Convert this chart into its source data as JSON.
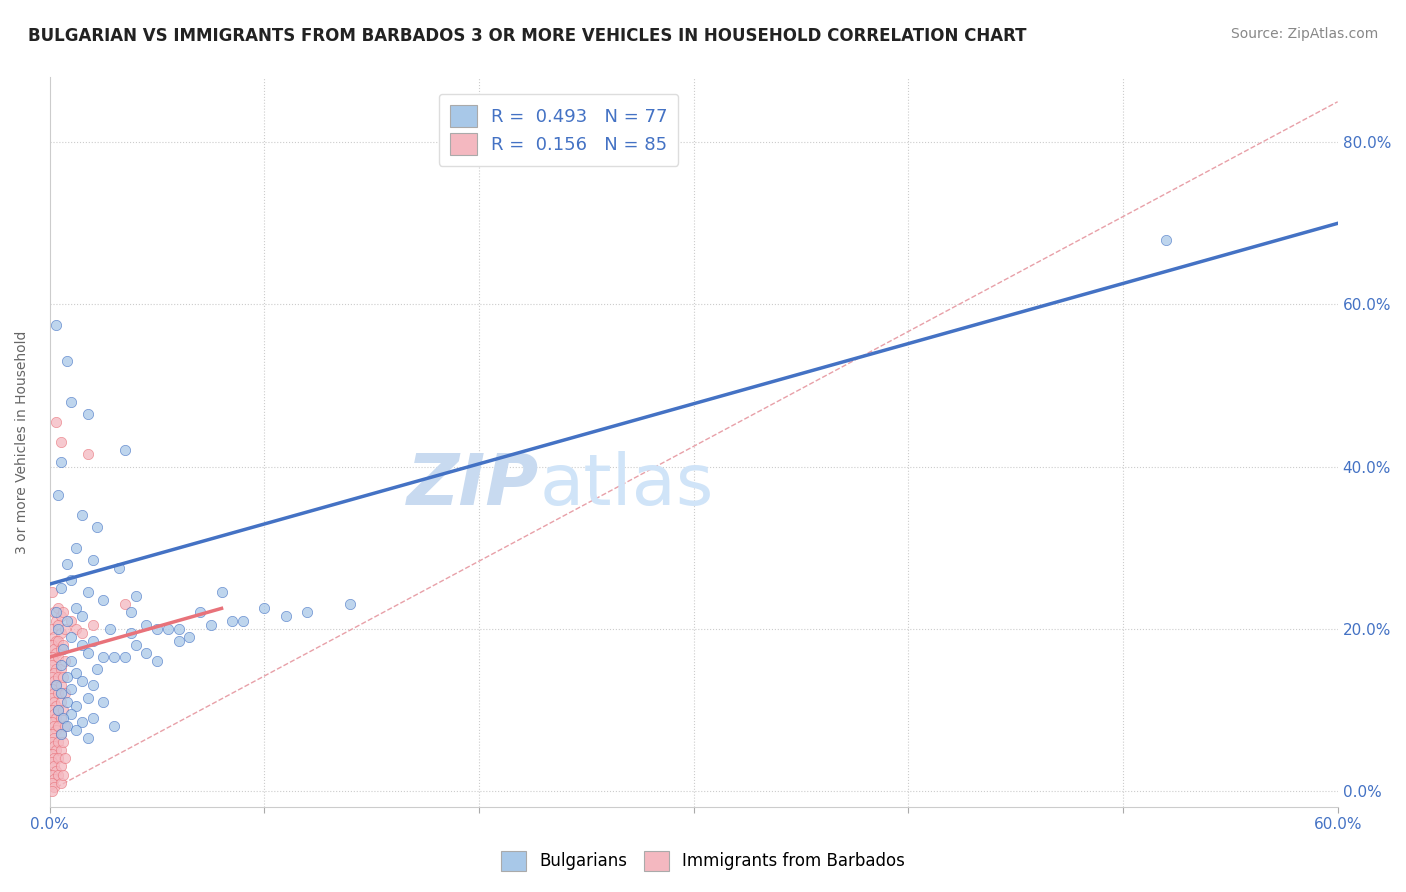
{
  "title": "BULGARIAN VS IMMIGRANTS FROM BARBADOS 3 OR MORE VEHICLES IN HOUSEHOLD CORRELATION CHART",
  "source": "Source: ZipAtlas.com",
  "ylabel": "3 or more Vehicles in Household",
  "ytick_values": [
    0.0,
    20.0,
    40.0,
    60.0,
    80.0
  ],
  "xlim": [
    0.0,
    60.0
  ],
  "ylim": [
    -2.0,
    88.0
  ],
  "watermark_zip": "ZIP",
  "watermark_atlas": "atlas",
  "blue_scatter": [
    [
      0.3,
      57.5
    ],
    [
      0.8,
      53.0
    ],
    [
      1.0,
      48.0
    ],
    [
      1.8,
      46.5
    ],
    [
      0.5,
      40.5
    ],
    [
      0.4,
      36.5
    ],
    [
      1.5,
      34.0
    ],
    [
      2.2,
      32.5
    ],
    [
      3.5,
      42.0
    ],
    [
      1.2,
      30.0
    ],
    [
      0.8,
      28.0
    ],
    [
      2.0,
      28.5
    ],
    [
      3.2,
      27.5
    ],
    [
      1.0,
      26.0
    ],
    [
      0.5,
      25.0
    ],
    [
      1.8,
      24.5
    ],
    [
      2.5,
      23.5
    ],
    [
      1.2,
      22.5
    ],
    [
      0.3,
      22.0
    ],
    [
      1.5,
      21.5
    ],
    [
      0.8,
      21.0
    ],
    [
      2.8,
      20.0
    ],
    [
      0.4,
      20.0
    ],
    [
      1.0,
      19.0
    ],
    [
      3.8,
      22.0
    ],
    [
      2.0,
      18.5
    ],
    [
      1.5,
      18.0
    ],
    [
      0.6,
      17.5
    ],
    [
      1.8,
      17.0
    ],
    [
      2.5,
      16.5
    ],
    [
      1.0,
      16.0
    ],
    [
      0.5,
      15.5
    ],
    [
      3.0,
      16.5
    ],
    [
      2.2,
      15.0
    ],
    [
      1.2,
      14.5
    ],
    [
      0.8,
      14.0
    ],
    [
      1.5,
      13.5
    ],
    [
      0.3,
      13.0
    ],
    [
      2.0,
      13.0
    ],
    [
      1.0,
      12.5
    ],
    [
      0.5,
      12.0
    ],
    [
      1.8,
      11.5
    ],
    [
      0.8,
      11.0
    ],
    [
      2.5,
      11.0
    ],
    [
      1.2,
      10.5
    ],
    [
      0.4,
      10.0
    ],
    [
      1.0,
      9.5
    ],
    [
      0.6,
      9.0
    ],
    [
      2.0,
      9.0
    ],
    [
      1.5,
      8.5
    ],
    [
      0.8,
      8.0
    ],
    [
      1.2,
      7.5
    ],
    [
      3.0,
      8.0
    ],
    [
      0.5,
      7.0
    ],
    [
      1.8,
      6.5
    ],
    [
      4.0,
      24.0
    ],
    [
      5.5,
      20.0
    ],
    [
      6.0,
      18.5
    ],
    [
      8.0,
      24.5
    ],
    [
      10.0,
      22.5
    ],
    [
      7.0,
      22.0
    ],
    [
      4.5,
      17.0
    ],
    [
      12.0,
      22.0
    ],
    [
      5.0,
      20.0
    ],
    [
      3.5,
      16.5
    ],
    [
      6.5,
      19.0
    ],
    [
      9.0,
      21.0
    ],
    [
      11.0,
      21.5
    ],
    [
      14.0,
      23.0
    ],
    [
      7.5,
      20.5
    ],
    [
      4.0,
      18.0
    ],
    [
      52.0,
      68.0
    ],
    [
      5.0,
      16.0
    ],
    [
      6.0,
      20.0
    ],
    [
      3.8,
      19.5
    ],
    [
      8.5,
      21.0
    ],
    [
      4.5,
      20.5
    ]
  ],
  "pink_scatter": [
    [
      0.1,
      24.5
    ],
    [
      0.2,
      22.0
    ],
    [
      0.3,
      21.0
    ],
    [
      0.1,
      20.0
    ],
    [
      0.2,
      19.0
    ],
    [
      0.3,
      18.5
    ],
    [
      0.1,
      18.0
    ],
    [
      0.2,
      17.5
    ],
    [
      0.3,
      17.0
    ],
    [
      0.1,
      16.5
    ],
    [
      0.2,
      16.0
    ],
    [
      0.1,
      15.5
    ],
    [
      0.3,
      15.0
    ],
    [
      0.2,
      14.5
    ],
    [
      0.1,
      14.0
    ],
    [
      0.2,
      13.5
    ],
    [
      0.3,
      13.0
    ],
    [
      0.1,
      12.5
    ],
    [
      0.2,
      12.0
    ],
    [
      0.1,
      11.5
    ],
    [
      0.2,
      11.0
    ],
    [
      0.3,
      10.5
    ],
    [
      0.1,
      10.0
    ],
    [
      0.2,
      9.5
    ],
    [
      0.3,
      9.0
    ],
    [
      0.1,
      8.5
    ],
    [
      0.2,
      8.0
    ],
    [
      0.3,
      7.5
    ],
    [
      0.1,
      7.0
    ],
    [
      0.2,
      6.5
    ],
    [
      0.1,
      6.0
    ],
    [
      0.2,
      5.5
    ],
    [
      0.3,
      5.0
    ],
    [
      0.1,
      4.5
    ],
    [
      0.2,
      4.0
    ],
    [
      0.1,
      3.5
    ],
    [
      0.2,
      3.0
    ],
    [
      0.3,
      2.5
    ],
    [
      0.1,
      2.0
    ],
    [
      0.2,
      1.5
    ],
    [
      0.1,
      1.0
    ],
    [
      0.2,
      0.5
    ],
    [
      0.1,
      0.0
    ],
    [
      0.4,
      22.5
    ],
    [
      0.5,
      21.5
    ],
    [
      0.4,
      20.5
    ],
    [
      0.5,
      19.5
    ],
    [
      0.4,
      18.5
    ],
    [
      0.5,
      17.5
    ],
    [
      0.4,
      16.5
    ],
    [
      0.5,
      15.0
    ],
    [
      0.4,
      14.0
    ],
    [
      0.5,
      13.0
    ],
    [
      0.4,
      12.0
    ],
    [
      0.5,
      11.0
    ],
    [
      0.4,
      10.0
    ],
    [
      0.5,
      9.0
    ],
    [
      0.4,
      8.0
    ],
    [
      0.5,
      7.0
    ],
    [
      0.4,
      6.0
    ],
    [
      0.5,
      5.0
    ],
    [
      0.4,
      4.0
    ],
    [
      0.5,
      3.0
    ],
    [
      0.4,
      2.0
    ],
    [
      0.5,
      1.0
    ],
    [
      0.6,
      22.0
    ],
    [
      0.7,
      20.0
    ],
    [
      0.6,
      18.0
    ],
    [
      0.7,
      16.0
    ],
    [
      0.6,
      14.0
    ],
    [
      0.7,
      12.0
    ],
    [
      0.6,
      10.0
    ],
    [
      0.7,
      8.0
    ],
    [
      0.6,
      6.0
    ],
    [
      0.7,
      4.0
    ],
    [
      0.6,
      2.0
    ],
    [
      1.0,
      21.0
    ],
    [
      1.2,
      20.0
    ],
    [
      1.5,
      19.5
    ],
    [
      2.0,
      20.5
    ],
    [
      3.5,
      23.0
    ],
    [
      1.8,
      41.5
    ],
    [
      0.5,
      43.0
    ],
    [
      0.3,
      45.5
    ]
  ],
  "blue_line": [
    [
      0.0,
      25.5
    ],
    [
      60.0,
      70.0
    ]
  ],
  "pink_line": [
    [
      0.0,
      16.5
    ],
    [
      8.0,
      22.5
    ]
  ],
  "diag_line_pink": [
    [
      0.0,
      0.0
    ],
    [
      60.0,
      85.0
    ]
  ],
  "blue_color": "#4472c4",
  "pink_color": "#e8727a",
  "blue_scatter_color": "#a8c8e8",
  "pink_scatter_color": "#f4b8c0",
  "diag_color": "#e8a0a8",
  "bg_color": "#ffffff",
  "plot_bg": "#ffffff",
  "title_fontsize": 12,
  "source_fontsize": 10,
  "axis_label_color": "#4472c4",
  "watermark_color_zip": "#c8daf0",
  "watermark_color_atlas": "#c8daf0"
}
